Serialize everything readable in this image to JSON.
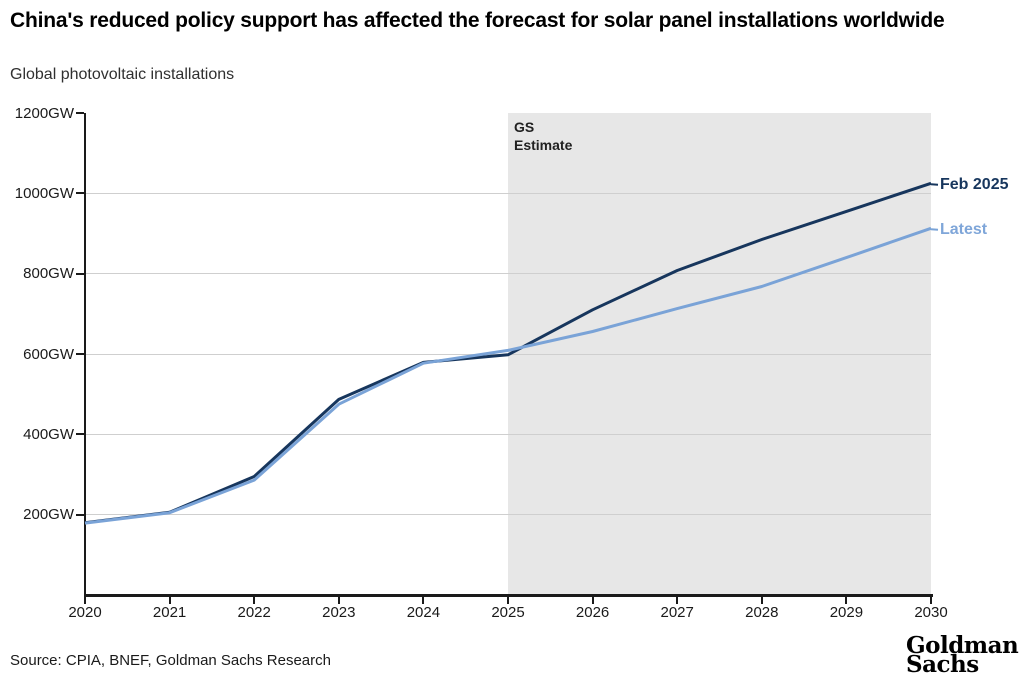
{
  "page": {
    "title": "China's reduced policy support has affected the forecast for solar panel installations worldwide",
    "subtitle": "Global photovoltaic installations",
    "source": "Source: CPIA, BNEF, Goldman Sachs Research",
    "logo": {
      "line1": "Goldman",
      "line2": "Sachs"
    }
  },
  "chart_data": {
    "type": "line",
    "title": "Global photovoltaic installations",
    "unit": "GW",
    "x": [
      2020,
      2021,
      2022,
      2023,
      2024,
      2025,
      2026,
      2027,
      2028,
      2029,
      2030
    ],
    "series": [
      {
        "name": "Feb 2025",
        "color": "#17365d",
        "values": [
          180,
          206,
          295,
          487,
          579,
          598,
          710,
          808,
          885,
          955,
          1025
        ]
      },
      {
        "name": "Latest",
        "color": "#7aa3d7",
        "label_color": "#7fa6d9",
        "values": [
          179,
          205,
          286,
          475,
          577,
          609,
          656,
          713,
          768,
          840,
          913
        ]
      }
    ],
    "ylim": [
      0,
      1200
    ],
    "ytick_step": 200,
    "ytick_suffix": "GW",
    "grid": true,
    "legend_position": "right-of-line-ends",
    "estimate_region": {
      "label": "GS\nEstimate",
      "x_start": 2025,
      "x_end": 2030,
      "color": "#e7e7e7"
    }
  }
}
